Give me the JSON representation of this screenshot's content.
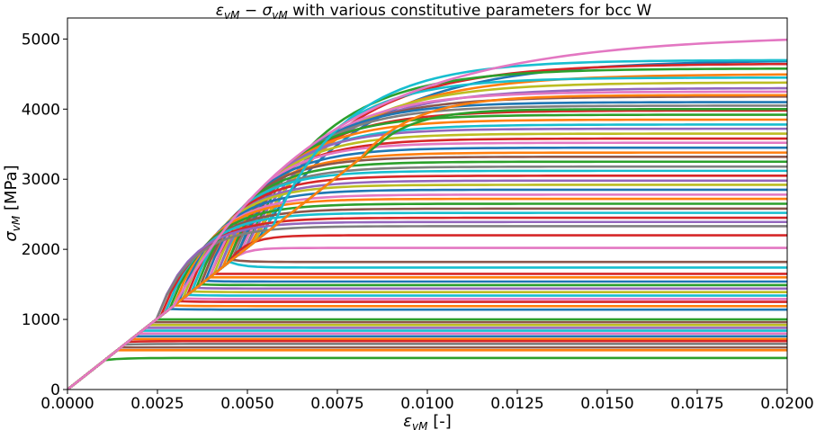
{
  "chart_data": {
    "type": "line",
    "title": {
      "eps_symbol": "ε",
      "eps_sub": "vM",
      "op": " − ",
      "sig_symbol": "σ",
      "sig_sub": "vM",
      "rest": " with various constitutive parameters for bcc W"
    },
    "xlabel": {
      "symbol": "ε",
      "sub": "vM",
      "unit": " [-]"
    },
    "ylabel": {
      "symbol": "σ",
      "sub": "vM",
      "unit": " [MPa]"
    },
    "xlim": [
      0,
      0.02
    ],
    "ylim": [
      0,
      5300
    ],
    "xticks": [
      "0.0000",
      "0.0025",
      "0.0050",
      "0.0075",
      "0.0100",
      "0.0125",
      "0.0150",
      "0.0175",
      "0.0200"
    ],
    "yticks": [
      "0",
      "1000",
      "2000",
      "3000",
      "4000",
      "5000"
    ],
    "grid": false,
    "legend": "none",
    "elastic_slope_mpa_per_strain": 405000,
    "colors": [
      "#1f77b4",
      "#ff7f0e",
      "#2ca02c",
      "#d62728",
      "#9467bd",
      "#8c564b",
      "#e377c2",
      "#7f7f7f",
      "#bcbd22",
      "#17becf"
    ],
    "series": [
      {
        "y0": 2150,
        "yf": 4700,
        "k": 5,
        "color": "#1f77b4"
      },
      {
        "y0": 2100,
        "yf": 4650,
        "k": 6,
        "color": "#d62728"
      },
      {
        "y0": 2000,
        "yf": 4580,
        "k": 7,
        "color": "#2ca02c"
      },
      {
        "y0": 2050,
        "yf": 4500,
        "k": 6,
        "color": "#ff7f0e"
      },
      {
        "y0": 2200,
        "yf": 4450,
        "k": 8,
        "color": "#17becf"
      },
      {
        "y0": 2100,
        "yf": 4380,
        "k": 7,
        "color": "#bcbd22"
      },
      {
        "y0": 2000,
        "yf": 4300,
        "k": 7,
        "color": "#9467bd"
      },
      {
        "y0": 1950,
        "yf": 4250,
        "k": 8,
        "color": "#e377c2"
      },
      {
        "y0": 1900,
        "yf": 4180,
        "k": 8,
        "color": "#8c564b"
      },
      {
        "y0": 1900,
        "yf": 4100,
        "k": 9,
        "color": "#1f77b4"
      },
      {
        "y0": 1850,
        "yf": 4050,
        "k": 9,
        "color": "#7f7f7f"
      },
      {
        "y0": 1800,
        "yf": 3980,
        "k": 9,
        "color": "#d62728"
      },
      {
        "y0": 1800,
        "yf": 3920,
        "k": 10,
        "color": "#2ca02c"
      },
      {
        "y0": 1750,
        "yf": 3850,
        "k": 10,
        "color": "#ff7f0e"
      },
      {
        "y0": 1700,
        "yf": 3780,
        "k": 10,
        "color": "#17becf"
      },
      {
        "y0": 1700,
        "yf": 3720,
        "k": 11,
        "color": "#9467bd"
      },
      {
        "y0": 1650,
        "yf": 3650,
        "k": 11,
        "color": "#bcbd22"
      },
      {
        "y0": 1600,
        "yf": 3580,
        "k": 11,
        "color": "#d62728"
      },
      {
        "y0": 1600,
        "yf": 3520,
        "k": 12,
        "color": "#e377c2"
      },
      {
        "y0": 1550,
        "yf": 3450,
        "k": 12,
        "color": "#1f77b4"
      },
      {
        "y0": 1500,
        "yf": 3380,
        "k": 12,
        "color": "#ff7f0e"
      },
      {
        "y0": 1500,
        "yf": 3320,
        "k": 13,
        "color": "#8c564b"
      },
      {
        "y0": 1450,
        "yf": 3250,
        "k": 13,
        "color": "#2ca02c"
      },
      {
        "y0": 1400,
        "yf": 3180,
        "k": 13,
        "color": "#7f7f7f"
      },
      {
        "y0": 1400,
        "yf": 3120,
        "k": 14,
        "color": "#17becf"
      },
      {
        "y0": 1350,
        "yf": 3050,
        "k": 14,
        "color": "#d62728"
      },
      {
        "y0": 1300,
        "yf": 2980,
        "k": 14,
        "color": "#9467bd"
      },
      {
        "y0": 1300,
        "yf": 2920,
        "k": 15,
        "color": "#bcbd22"
      },
      {
        "y0": 1250,
        "yf": 2850,
        "k": 15,
        "color": "#1f77b4"
      },
      {
        "y0": 1200,
        "yf": 2780,
        "k": 15,
        "color": "#e377c2"
      },
      {
        "y0": 1200,
        "yf": 2720,
        "k": 16,
        "color": "#ff7f0e"
      },
      {
        "y0": 1150,
        "yf": 2650,
        "k": 16,
        "color": "#2ca02c"
      },
      {
        "y0": 1100,
        "yf": 2580,
        "k": 16,
        "color": "#8c564b"
      },
      {
        "y0": 1100,
        "yf": 2520,
        "k": 17,
        "color": "#17becf"
      },
      {
        "y0": 1050,
        "yf": 2450,
        "k": 17,
        "color": "#d62728"
      },
      {
        "y0": 1000,
        "yf": 2390,
        "k": 18,
        "color": "#9467bd"
      },
      {
        "y0": 1000,
        "yf": 2330,
        "k": 18,
        "color": "#7f7f7f"
      },
      {
        "y0": 1800,
        "yf": 2200,
        "k": 30,
        "color": "#d62728"
      },
      {
        "y0": 1900,
        "yf": 2020,
        "k": 40,
        "color": "#e377c2"
      },
      {
        "y0": 1850,
        "yf": 1820,
        "k": 40,
        "color": "#8c564b"
      },
      {
        "y0": 1820,
        "yf": 1740,
        "k": 40,
        "color": "#17becf"
      },
      {
        "y0": 1650,
        "yf": 1650,
        "k": 40,
        "color": "#d62728"
      },
      {
        "y0": 1600,
        "yf": 1600,
        "k": 40,
        "color": "#ff7f0e"
      },
      {
        "y0": 1550,
        "yf": 1540,
        "k": 40,
        "color": "#1f77b4"
      },
      {
        "y0": 1500,
        "yf": 1490,
        "k": 40,
        "color": "#2ca02c"
      },
      {
        "y0": 1450,
        "yf": 1440,
        "k": 40,
        "color": "#9467bd"
      },
      {
        "y0": 1400,
        "yf": 1390,
        "k": 40,
        "color": "#bcbd22"
      },
      {
        "y0": 1350,
        "yf": 1340,
        "k": 40,
        "color": "#17becf"
      },
      {
        "y0": 1300,
        "yf": 1290,
        "k": 40,
        "color": "#e377c2"
      },
      {
        "y0": 1260,
        "yf": 1250,
        "k": 40,
        "color": "#d62728"
      },
      {
        "y0": 1200,
        "yf": 1190,
        "k": 40,
        "color": "#ff7f0e"
      },
      {
        "y0": 1150,
        "yf": 1140,
        "k": 40,
        "color": "#1f77b4"
      },
      {
        "y0": 1000,
        "yf": 1000,
        "k": 40,
        "color": "#2ca02c"
      },
      {
        "y0": 960,
        "yf": 960,
        "k": 40,
        "color": "#8c564b"
      },
      {
        "y0": 920,
        "yf": 920,
        "k": 40,
        "color": "#bcbd22"
      },
      {
        "y0": 880,
        "yf": 880,
        "k": 40,
        "color": "#9467bd"
      },
      {
        "y0": 840,
        "yf": 840,
        "k": 40,
        "color": "#17becf"
      },
      {
        "y0": 800,
        "yf": 800,
        "k": 40,
        "color": "#e377c2"
      },
      {
        "y0": 760,
        "yf": 760,
        "k": 40,
        "color": "#1f77b4"
      },
      {
        "y0": 720,
        "yf": 720,
        "k": 40,
        "color": "#ff7f0e"
      },
      {
        "y0": 680,
        "yf": 690,
        "k": 40,
        "color": "#d62728"
      },
      {
        "y0": 640,
        "yf": 650,
        "k": 40,
        "color": "#7f7f7f"
      },
      {
        "y0": 600,
        "yf": 600,
        "k": 40,
        "color": "#8c564b"
      },
      {
        "y0": 560,
        "yf": 560,
        "k": 40,
        "color": "#ff7f0e"
      },
      {
        "y0": 420,
        "yf": 450,
        "k": 40,
        "color": "#2ca02c"
      },
      {
        "y0": 2300,
        "yf": 4700,
        "k": 7,
        "color": "#17becf"
      },
      {
        "y0": 3600,
        "yf": 4000,
        "k": 10,
        "color": "#2ca02c"
      },
      {
        "y0": 3300,
        "yf": 4200,
        "k": 8,
        "color": "#ff7f0e"
      },
      {
        "y0": 1200,
        "yf": 5060,
        "k": 4,
        "color": "#e377c2"
      }
    ]
  }
}
